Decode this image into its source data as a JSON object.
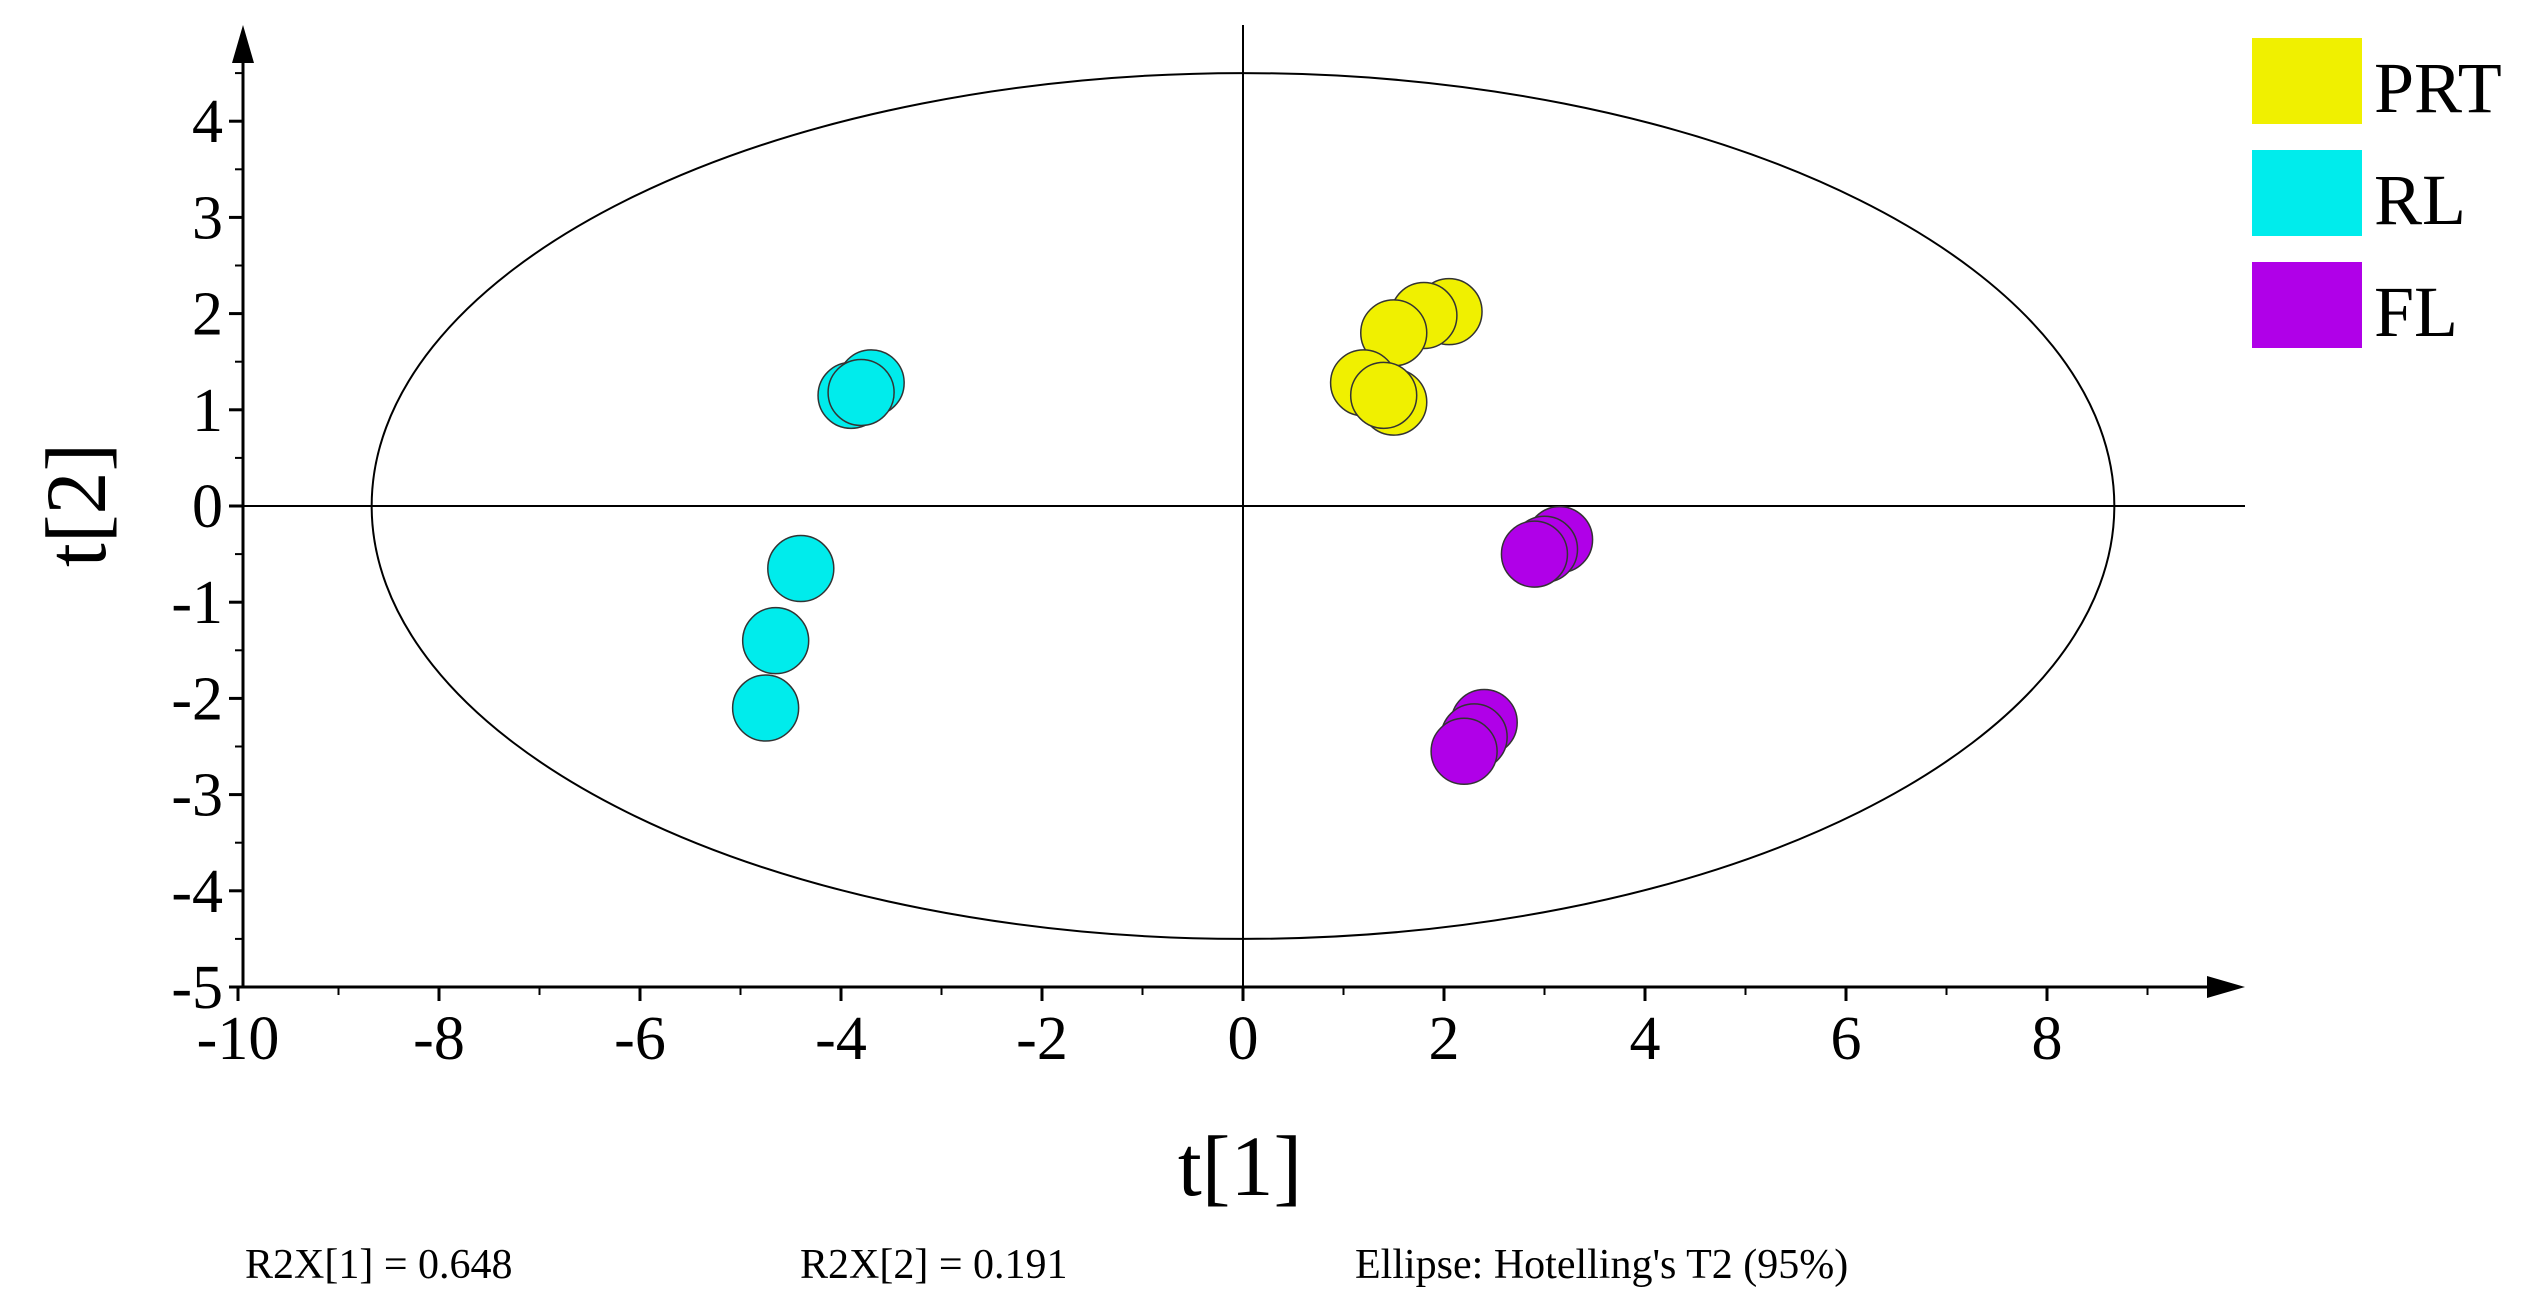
{
  "chart_data": {
    "type": "scatter",
    "title": "",
    "xlabel": "t[1]",
    "ylabel": "t[2]",
    "xlim": [
      -10,
      10
    ],
    "ylim": [
      -5,
      5
    ],
    "x_ticks": [
      -10,
      -8,
      -6,
      -4,
      -2,
      0,
      2,
      4,
      6,
      8
    ],
    "y_ticks": [
      -5,
      -4,
      -3,
      -2,
      -1,
      0,
      1,
      2,
      3,
      4
    ],
    "x_tick_labels": [
      "-10",
      "-8",
      "-6",
      "-4",
      "-2",
      "0",
      "2",
      "4",
      "6",
      "8"
    ],
    "y_tick_labels": [
      "-5",
      "-4",
      "-3",
      "-2",
      "-1",
      "0",
      "1",
      "2",
      "3",
      "4"
    ],
    "grid": false,
    "legend_position": "top-right",
    "ellipse": {
      "x_radius": 8.67,
      "y_radius": 4.5
    },
    "series": [
      {
        "name": "PRT",
        "color": "#f0f000",
        "points": [
          [
            2.05,
            2.02
          ],
          [
            1.8,
            1.98
          ],
          [
            1.5,
            1.8
          ],
          [
            1.2,
            1.28
          ],
          [
            1.5,
            1.08
          ],
          [
            1.4,
            1.15
          ]
        ]
      },
      {
        "name": "RL",
        "color": "#00ecec",
        "points": [
          [
            -3.7,
            1.28
          ],
          [
            -3.9,
            1.15
          ],
          [
            -3.8,
            1.18
          ],
          [
            -4.4,
            -0.65
          ],
          [
            -4.65,
            -1.4
          ],
          [
            -4.75,
            -2.1
          ]
        ]
      },
      {
        "name": "FL",
        "color": "#b000e8",
        "points": [
          [
            3.15,
            -0.35
          ],
          [
            3.0,
            -0.45
          ],
          [
            2.9,
            -0.5
          ],
          [
            2.4,
            -2.25
          ],
          [
            2.3,
            -2.4
          ],
          [
            2.2,
            -2.55
          ]
        ]
      }
    ]
  },
  "footer": {
    "r2x1": "R2X[1] = 0.648",
    "r2x2": "R2X[2] = 0.191",
    "ellipse_note": "Ellipse: Hotelling's T2 (95%)"
  }
}
